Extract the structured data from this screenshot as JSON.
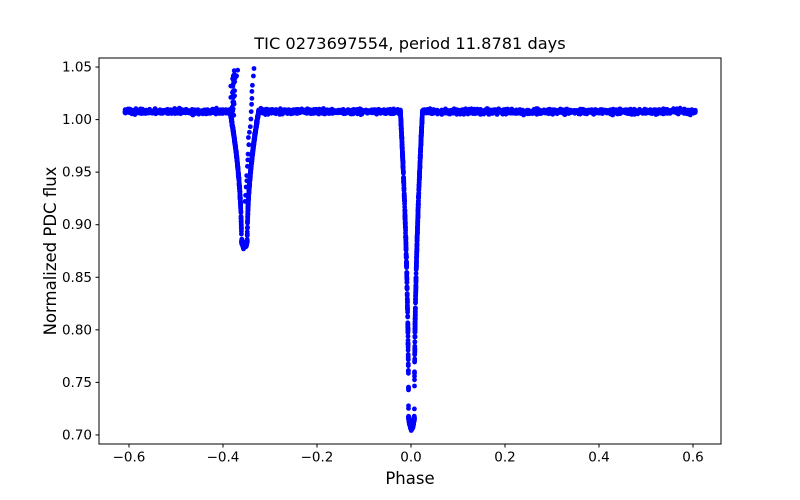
{
  "figure": {
    "background_color": "#ffffff",
    "spine_color": "#000000",
    "text_color": "#000000"
  },
  "chart_data": {
    "type": "scatter",
    "title": "TIC 0273697554, period 11.8781 days",
    "xlabel": "Phase",
    "ylabel": "Normalized PDC flux",
    "xlim": [
      -0.6638,
      0.6596
    ],
    "ylim": [
      0.6914,
      1.0586
    ],
    "xticks": [
      -0.6,
      -0.4,
      -0.2,
      0.0,
      0.2,
      0.4,
      0.6
    ],
    "xtick_labels": [
      "−0.6",
      "−0.4",
      "−0.2",
      "0.0",
      "0.2",
      "0.4",
      "0.6"
    ],
    "yticks": [
      0.7,
      0.75,
      0.8,
      0.85,
      0.9,
      0.95,
      1.0,
      1.05
    ],
    "ytick_labels": [
      "0.70",
      "0.75",
      "0.80",
      "0.85",
      "0.90",
      "0.95",
      "1.00",
      "1.05"
    ],
    "grid": false,
    "legend": null,
    "marker": {
      "shape": "circle",
      "color": "#0000ff",
      "radius": 2.4
    },
    "key_values": {
      "baseline_flux": 1.008,
      "primary_eclipse": {
        "phase": 0.0,
        "min_flux": 0.706,
        "half_width_phase": 0.023
      },
      "secondary_eclipse": {
        "phase": -0.355,
        "min_flux": 0.88,
        "half_width_phase": 0.03
      },
      "outlier_max_flux": 1.047,
      "phase_coverage": [
        -0.608,
        0.606
      ]
    },
    "model": {
      "seed": 7,
      "phase_range": [
        -0.6085,
        0.6064
      ],
      "baseline_flux": 1.0077,
      "baseline_points": 2600,
      "noise_sigma": 0.0011,
      "eclipses": [
        {
          "name": "primary-eclipse",
          "center": 0.001,
          "half_width": 0.0235,
          "bottom_half_width": 0.0062,
          "min_flux": 0.7065,
          "wall_gamma": 2.0,
          "extra_points": 780
        },
        {
          "name": "secondary-eclipse",
          "center": -0.3545,
          "half_width": 0.0305,
          "bottom_half_width": 0.0062,
          "min_flux": 0.88,
          "wall_gamma": 2.0,
          "extra_points": 780
        }
      ],
      "outlier_streaks": [
        {
          "name": "dense-streak",
          "from": {
            "phase": -0.374,
            "flux": 1.047
          },
          "to": {
            "phase": -0.3805,
            "flux": 1.004
          },
          "points": 34,
          "phase_jitter": 0.0028,
          "flux_jitter": 0.0012
        },
        {
          "name": "dotted-streak",
          "from": {
            "phase": -0.3345,
            "flux": 1.047
          },
          "to": {
            "phase": -0.3535,
            "flux": 0.922
          },
          "points": 20,
          "phase_jitter": 0.0008,
          "flux_jitter": 0.0008
        }
      ]
    }
  }
}
